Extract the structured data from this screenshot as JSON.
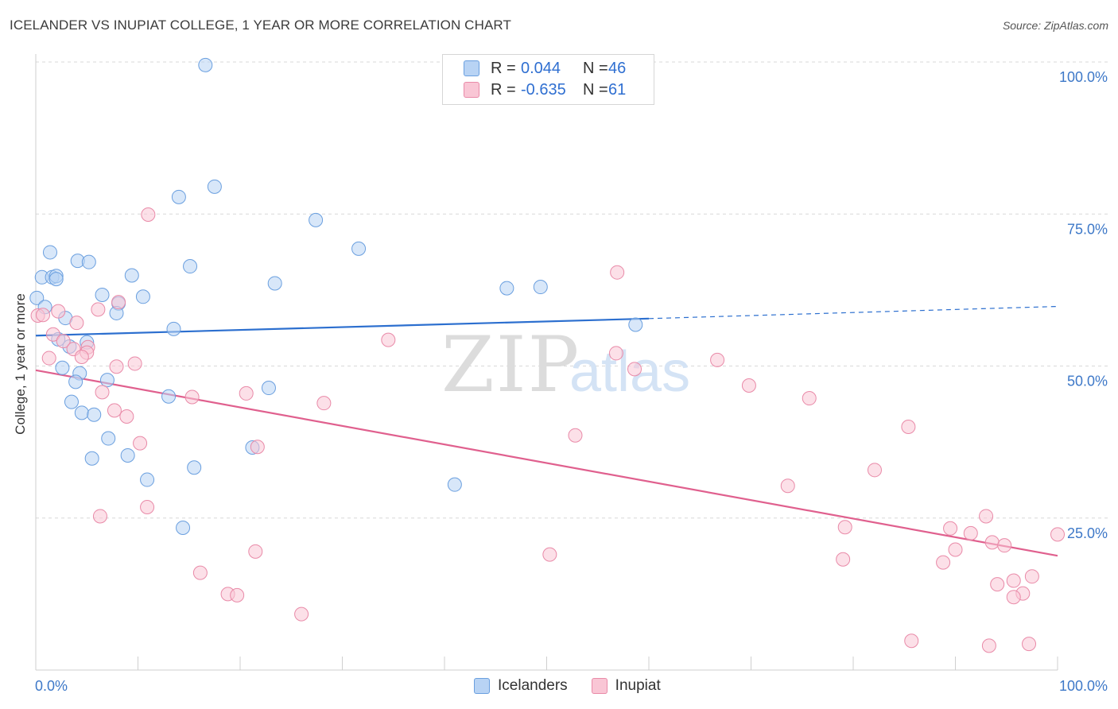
{
  "title": "ICELANDER VS INUPIAT COLLEGE, 1 YEAR OR MORE CORRELATION CHART",
  "source": "Source: ZipAtlas.com",
  "watermark": {
    "zip": "ZIP",
    "atlas": "atlas"
  },
  "colors": {
    "blue_fill": "#b8d3f4",
    "blue_stroke": "#6a9fdf",
    "blue_line": "#2c6fcf",
    "pink_fill": "#f9c6d5",
    "pink_stroke": "#e98aa8",
    "pink_line": "#e0608e",
    "axis_label": "#3d78c8",
    "grid": "#d8d8d8"
  },
  "legend": {
    "rows": [
      {
        "series": "Icelanders",
        "r_label": "R =",
        "r_value": "0.044",
        "n_label": "N =",
        "n_value": "46"
      },
      {
        "series": "Inupiat",
        "r_label": "R =",
        "r_value": "-0.635",
        "n_label": "N =",
        "n_value": "61"
      }
    ]
  },
  "chart_data": {
    "type": "scatter",
    "title": "ICELANDER VS INUPIAT COLLEGE, 1 YEAR OR MORE CORRELATION CHART",
    "xlabel": "",
    "ylabel": "College, 1 year or more",
    "xlim": [
      0,
      100
    ],
    "ylim": [
      0,
      100
    ],
    "x_tick_labels": [
      "0.0%",
      "100.0%"
    ],
    "y_tick_labels": [
      "25.0%",
      "50.0%",
      "75.0%",
      "100.0%"
    ],
    "y_ticks": [
      25,
      50,
      75,
      100
    ],
    "series": [
      {
        "name": "Icelanders",
        "points": [
          {
            "x": 16.6,
            "y": 99.5
          },
          {
            "x": 17.5,
            "y": 79.5
          },
          {
            "x": 14.0,
            "y": 77.8
          },
          {
            "x": 27.4,
            "y": 74.0
          },
          {
            "x": 31.6,
            "y": 69.3
          },
          {
            "x": 1.4,
            "y": 68.7
          },
          {
            "x": 4.1,
            "y": 67.3
          },
          {
            "x": 5.2,
            "y": 67.1
          },
          {
            "x": 15.1,
            "y": 66.4
          },
          {
            "x": 9.4,
            "y": 64.9
          },
          {
            "x": 0.6,
            "y": 64.6
          },
          {
            "x": 1.6,
            "y": 64.6
          },
          {
            "x": 2.0,
            "y": 64.8
          },
          {
            "x": 2.0,
            "y": 64.3
          },
          {
            "x": 23.4,
            "y": 63.6
          },
          {
            "x": 46.1,
            "y": 62.8
          },
          {
            "x": 49.4,
            "y": 63.0
          },
          {
            "x": 6.5,
            "y": 61.7
          },
          {
            "x": 10.5,
            "y": 61.4
          },
          {
            "x": 8.1,
            "y": 60.3
          },
          {
            "x": 0.1,
            "y": 61.2
          },
          {
            "x": 0.9,
            "y": 59.7
          },
          {
            "x": 7.9,
            "y": 58.7
          },
          {
            "x": 2.9,
            "y": 57.9
          },
          {
            "x": 58.7,
            "y": 56.8
          },
          {
            "x": 13.5,
            "y": 56.1
          },
          {
            "x": 2.2,
            "y": 54.4
          },
          {
            "x": 5.0,
            "y": 53.9
          },
          {
            "x": 3.3,
            "y": 53.2
          },
          {
            "x": 2.6,
            "y": 49.7
          },
          {
            "x": 4.3,
            "y": 48.8
          },
          {
            "x": 7.0,
            "y": 47.7
          },
          {
            "x": 3.9,
            "y": 47.4
          },
          {
            "x": 22.8,
            "y": 46.4
          },
          {
            "x": 13.0,
            "y": 45.0
          },
          {
            "x": 3.5,
            "y": 44.1
          },
          {
            "x": 4.5,
            "y": 42.3
          },
          {
            "x": 5.7,
            "y": 42.0
          },
          {
            "x": 7.1,
            "y": 38.1
          },
          {
            "x": 21.2,
            "y": 36.6
          },
          {
            "x": 9.0,
            "y": 35.3
          },
          {
            "x": 5.5,
            "y": 34.8
          },
          {
            "x": 15.5,
            "y": 33.3
          },
          {
            "x": 10.9,
            "y": 31.3
          },
          {
            "x": 41.0,
            "y": 30.5
          },
          {
            "x": 14.4,
            "y": 23.4
          }
        ]
      },
      {
        "name": "Inupiat",
        "points": [
          {
            "x": 11.0,
            "y": 74.9
          },
          {
            "x": 56.9,
            "y": 65.4
          },
          {
            "x": 8.1,
            "y": 60.5
          },
          {
            "x": 6.1,
            "y": 59.3
          },
          {
            "x": 2.2,
            "y": 59.0
          },
          {
            "x": 0.2,
            "y": 58.3
          },
          {
            "x": 0.7,
            "y": 58.4
          },
          {
            "x": 4.0,
            "y": 57.1
          },
          {
            "x": 1.7,
            "y": 55.2
          },
          {
            "x": 34.5,
            "y": 54.3
          },
          {
            "x": 2.7,
            "y": 54.1
          },
          {
            "x": 5.1,
            "y": 53.1
          },
          {
            "x": 3.7,
            "y": 52.8
          },
          {
            "x": 5.0,
            "y": 52.2
          },
          {
            "x": 56.8,
            "y": 52.1
          },
          {
            "x": 4.5,
            "y": 51.5
          },
          {
            "x": 1.3,
            "y": 51.3
          },
          {
            "x": 66.7,
            "y": 51.0
          },
          {
            "x": 9.7,
            "y": 50.4
          },
          {
            "x": 7.9,
            "y": 49.9
          },
          {
            "x": 58.6,
            "y": 49.5
          },
          {
            "x": 69.8,
            "y": 46.8
          },
          {
            "x": 6.5,
            "y": 45.7
          },
          {
            "x": 20.6,
            "y": 45.5
          },
          {
            "x": 15.3,
            "y": 44.9
          },
          {
            "x": 75.7,
            "y": 44.7
          },
          {
            "x": 28.2,
            "y": 43.9
          },
          {
            "x": 7.7,
            "y": 42.7
          },
          {
            "x": 8.9,
            "y": 41.7
          },
          {
            "x": 85.4,
            "y": 40.0
          },
          {
            "x": 52.8,
            "y": 38.6
          },
          {
            "x": 10.2,
            "y": 37.3
          },
          {
            "x": 21.7,
            "y": 36.7
          },
          {
            "x": 82.1,
            "y": 32.9
          },
          {
            "x": 73.6,
            "y": 30.3
          },
          {
            "x": 10.9,
            "y": 26.8
          },
          {
            "x": 6.3,
            "y": 25.3
          },
          {
            "x": 93.0,
            "y": 25.3
          },
          {
            "x": 79.2,
            "y": 23.5
          },
          {
            "x": 89.5,
            "y": 23.3
          },
          {
            "x": 91.5,
            "y": 22.5
          },
          {
            "x": 100.0,
            "y": 22.3
          },
          {
            "x": 93.6,
            "y": 21.0
          },
          {
            "x": 94.8,
            "y": 20.5
          },
          {
            "x": 90.0,
            "y": 19.8
          },
          {
            "x": 21.5,
            "y": 19.5
          },
          {
            "x": 50.3,
            "y": 19.0
          },
          {
            "x": 79.0,
            "y": 18.2
          },
          {
            "x": 88.8,
            "y": 17.7
          },
          {
            "x": 16.1,
            "y": 16.0
          },
          {
            "x": 97.5,
            "y": 15.4
          },
          {
            "x": 95.7,
            "y": 14.7
          },
          {
            "x": 94.1,
            "y": 14.1
          },
          {
            "x": 18.8,
            "y": 12.5
          },
          {
            "x": 19.7,
            "y": 12.3
          },
          {
            "x": 96.6,
            "y": 12.6
          },
          {
            "x": 95.7,
            "y": 12.0
          },
          {
            "x": 26.0,
            "y": 9.2
          },
          {
            "x": 85.7,
            "y": 4.8
          },
          {
            "x": 97.2,
            "y": 4.3
          },
          {
            "x": 93.3,
            "y": 4.0
          }
        ]
      }
    ],
    "trendlines": [
      {
        "series": "Icelanders",
        "x": [
          0,
          60
        ],
        "y": [
          55.0,
          57.8
        ],
        "dashed_extension": {
          "x": [
            60,
            100
          ],
          "y": [
            57.8,
            59.8
          ]
        }
      },
      {
        "series": "Inupiat",
        "x": [
          0,
          100
        ],
        "y": [
          49.3,
          18.8
        ]
      }
    ],
    "legend": [
      "Icelanders",
      "Inupiat"
    ]
  }
}
